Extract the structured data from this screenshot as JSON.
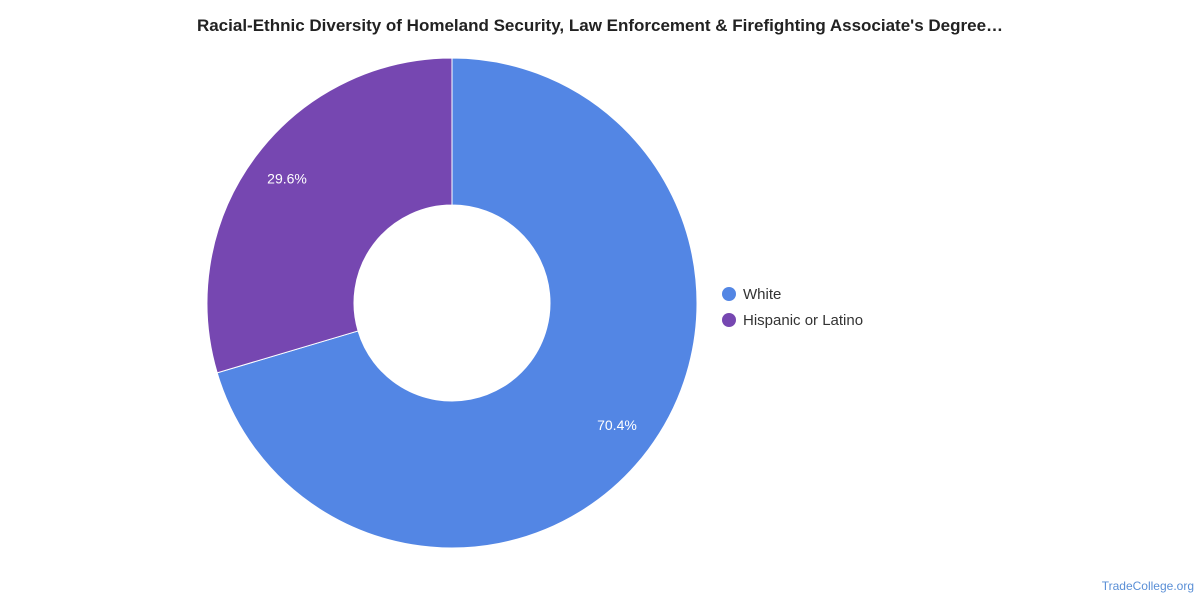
{
  "chart_data": {
    "type": "pie",
    "variant": "donut",
    "title": "Racial-Ethnic Diversity of Homeland Security, Law Enforcement & Firefighting Associate's Degree…",
    "categories": [
      "White",
      "Hispanic or Latino"
    ],
    "values": [
      70.4,
      29.6
    ],
    "value_labels": [
      "70.4%",
      "29.6%"
    ],
    "colors": [
      "#5386e4",
      "#7647b1"
    ],
    "legend_position": "right"
  },
  "source_credit": "TradeCollege.org"
}
